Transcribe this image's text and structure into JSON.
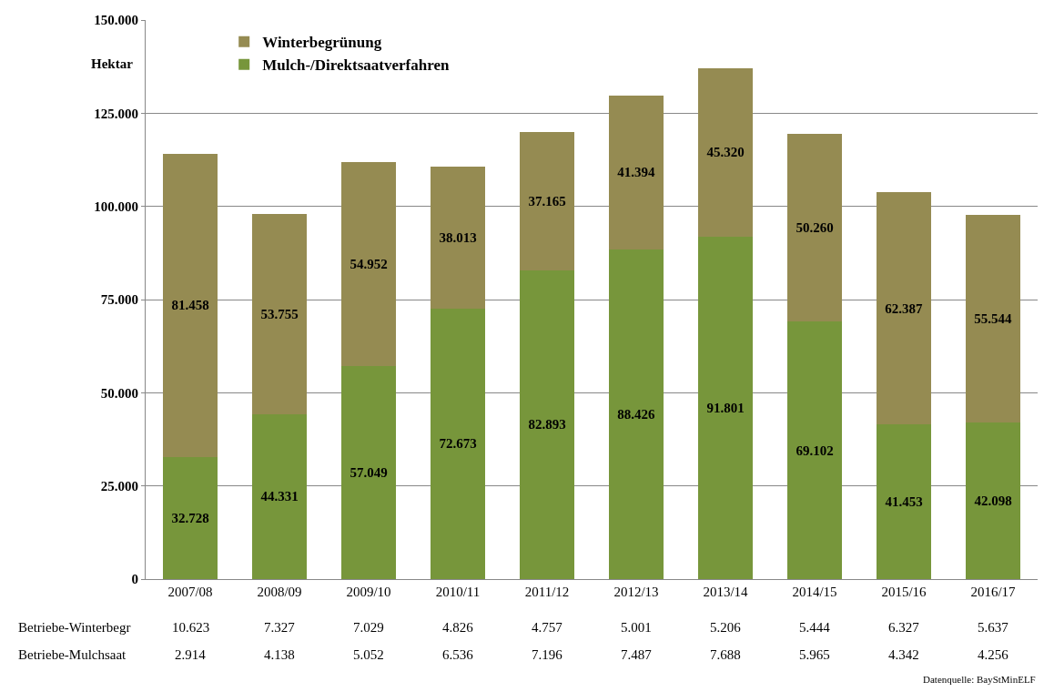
{
  "chart_data": {
    "type": "bar",
    "stacked": true,
    "ylabel": "Hektar",
    "categories": [
      "2007/08",
      "2008/09",
      "2009/10",
      "2010/11",
      "2011/12",
      "2012/13",
      "2013/14",
      "2014/15",
      "2015/16",
      "2016/17"
    ],
    "series": [
      {
        "name": "Mulch-/Direktsaatverfahren",
        "color": "#77963b",
        "values": [
          32728,
          44331,
          57049,
          72673,
          82893,
          88426,
          91801,
          69102,
          41453,
          42098
        ],
        "value_labels": [
          "32.728",
          "44.331",
          "57.049",
          "72.673",
          "82.893",
          "88.426",
          "91.801",
          "69.102",
          "41.453",
          "42.098"
        ]
      },
      {
        "name": "Winterbegrünung",
        "color": "#958b52",
        "values": [
          81458,
          53755,
          54952,
          38013,
          37165,
          41394,
          45320,
          50260,
          62387,
          55544
        ],
        "value_labels": [
          "81.458",
          "53.755",
          "54.952",
          "38.013",
          "37.165",
          "41.394",
          "45.320",
          "50.260",
          "62.387",
          "55.544"
        ]
      }
    ],
    "ylim": [
      0,
      150000
    ],
    "yticks": [
      {
        "value": 0,
        "label": "0"
      },
      {
        "value": 25000,
        "label": "25.000"
      },
      {
        "value": 50000,
        "label": "50.000"
      },
      {
        "value": 75000,
        "label": "75.000"
      },
      {
        "value": 100000,
        "label": "100.000"
      },
      {
        "value": 125000,
        "label": "125.000"
      },
      {
        "value": 150000,
        "label": "150.000"
      }
    ],
    "grid": "y",
    "legend": "top left",
    "annotations": [
      "Betriebe-Winterbegr",
      "10.623",
      "7.327",
      "7.029",
      "4.826",
      "4.757",
      "5.001",
      "5.206",
      "5.444",
      "6.327",
      "5.637",
      "Betriebe-Mulchsaat",
      "2.914",
      "4.138",
      "5.052",
      "6.536",
      "7.196",
      "7.487",
      "7.688",
      "5.965",
      "4.342",
      "4.256",
      "Datenquelle: BayStMinELF"
    ]
  }
}
